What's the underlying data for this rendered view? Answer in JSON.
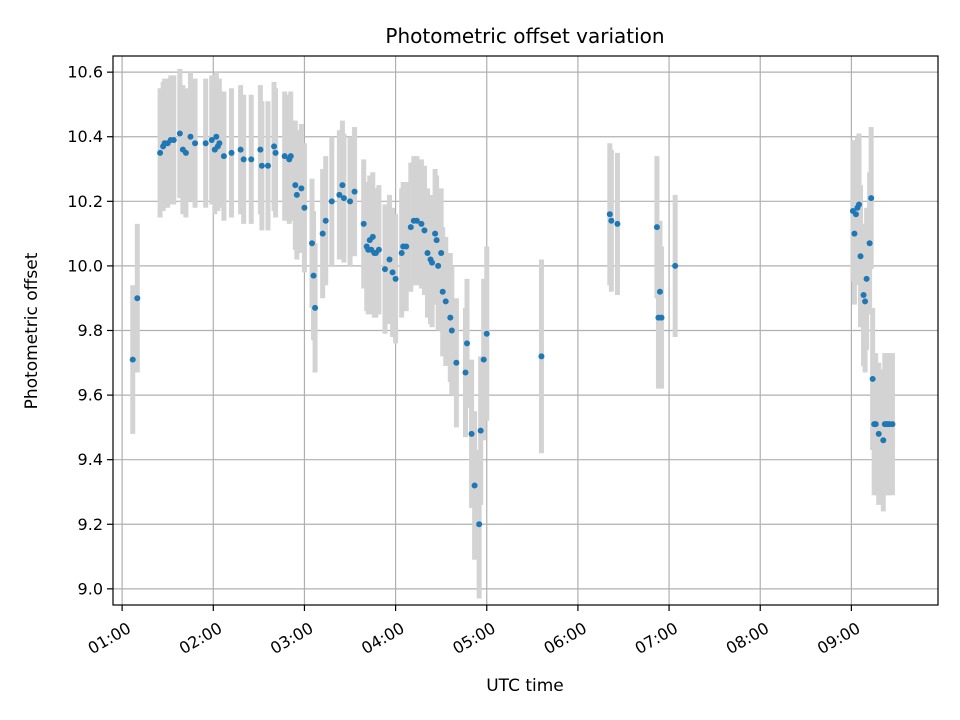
{
  "chart_data": {
    "type": "scatter",
    "title": "Photometric offset variation",
    "xlabel": "UTC time",
    "ylabel": "Photometric offset",
    "x_unit": "UTC hh:mm",
    "xlim": [
      "00:54",
      "09:57"
    ],
    "ylim": [
      8.95,
      10.65
    ],
    "x_ticks": [
      "01:00",
      "02:00",
      "03:00",
      "04:00",
      "05:00",
      "06:00",
      "07:00",
      "08:00",
      "09:00"
    ],
    "y_ticks": [
      "9.0",
      "9.2",
      "9.4",
      "9.6",
      "9.8",
      "10.0",
      "10.2",
      "10.4",
      "10.6"
    ],
    "grid": true,
    "point_color": "#1f77b4",
    "errorbar_color": "#d3d3d3",
    "series": [
      {
        "x": [
          "01:07",
          "01:10",
          "01:25",
          "01:27",
          "01:28",
          "01:30",
          "01:32",
          "01:34",
          "01:38",
          "01:40",
          "01:42",
          "01:45",
          "01:48",
          "01:55",
          "01:59",
          "02:01",
          "02:02",
          "02:03",
          "02:04",
          "02:07",
          "02:12",
          "02:18",
          "02:20",
          "02:25",
          "02:31",
          "02:32",
          "02:36",
          "02:40",
          "02:41",
          "02:47",
          "02:50",
          "02:51",
          "02:54",
          "02:55",
          "02:58",
          "03:00",
          "03:05",
          "03:06",
          "03:07",
          "03:12",
          "03:14",
          "03:18",
          "03:23",
          "03:25",
          "03:26",
          "03:30",
          "03:33",
          "03:39",
          "03:41",
          "03:42",
          "03:43",
          "03:44",
          "03:45",
          "03:46",
          "03:47",
          "03:49",
          "03:53",
          "03:56",
          "03:58",
          "04:00",
          "04:04",
          "04:05",
          "04:07",
          "04:10",
          "04:12",
          "04:14",
          "04:17",
          "04:19",
          "04:21",
          "04:23",
          "04:24",
          "04:26",
          "04:27",
          "04:28",
          "04:30",
          "04:31",
          "04:33",
          "04:36",
          "04:37",
          "04:40",
          "04:46",
          "04:47",
          "04:50",
          "04:52",
          "04:55",
          "04:56",
          "04:58",
          "05:00",
          "05:36",
          "06:21",
          "06:22",
          "06:26",
          "06:52",
          "06:53",
          "06:54",
          "06:55",
          "07:04",
          "09:01",
          "09:02",
          "09:03",
          "09:04",
          "09:05",
          "09:06",
          "09:08",
          "09:09",
          "09:10",
          "09:12",
          "09:13",
          "09:14",
          "09:15",
          "09:16",
          "09:18",
          "09:21",
          "09:22",
          "09:23",
          "09:24",
          "09:25",
          "09:27"
        ],
        "y": [
          9.71,
          9.9,
          10.35,
          10.37,
          10.38,
          10.38,
          10.39,
          10.39,
          10.41,
          10.36,
          10.35,
          10.4,
          10.38,
          10.38,
          10.39,
          10.36,
          10.4,
          10.37,
          10.38,
          10.34,
          10.35,
          10.36,
          10.33,
          10.33,
          10.36,
          10.31,
          10.31,
          10.37,
          10.35,
          10.34,
          10.33,
          10.34,
          10.25,
          10.22,
          10.24,
          10.18,
          10.07,
          9.97,
          9.87,
          10.1,
          10.14,
          10.2,
          10.22,
          10.25,
          10.21,
          10.2,
          10.23,
          10.13,
          10.06,
          10.05,
          10.08,
          10.05,
          10.09,
          10.04,
          10.04,
          10.05,
          9.99,
          10.02,
          9.98,
          9.96,
          10.04,
          10.06,
          10.06,
          10.12,
          10.14,
          10.14,
          10.13,
          10.11,
          10.04,
          10.02,
          10.01,
          10.1,
          10.08,
          10.0,
          10.04,
          9.92,
          9.89,
          9.84,
          9.8,
          9.7,
          9.67,
          9.76,
          9.48,
          9.32,
          9.2,
          9.49,
          9.71,
          9.79,
          9.72,
          10.16,
          10.14,
          10.13,
          10.12,
          9.84,
          9.92,
          9.84,
          10.0,
          10.17,
          10.1,
          10.16,
          10.18,
          10.19,
          10.03,
          9.91,
          9.89,
          9.96,
          10.07,
          10.21,
          9.65,
          9.51,
          9.51,
          9.48,
          9.46,
          9.51,
          9.51,
          9.51,
          9.51,
          9.51
        ],
        "yerr": [
          0.23,
          0.23,
          0.2,
          0.2,
          0.2,
          0.2,
          0.2,
          0.2,
          0.2,
          0.2,
          0.2,
          0.2,
          0.2,
          0.2,
          0.2,
          0.2,
          0.2,
          0.2,
          0.2,
          0.2,
          0.2,
          0.2,
          0.2,
          0.2,
          0.2,
          0.2,
          0.2,
          0.2,
          0.2,
          0.2,
          0.2,
          0.2,
          0.2,
          0.2,
          0.2,
          0.2,
          0.2,
          0.2,
          0.2,
          0.2,
          0.2,
          0.2,
          0.2,
          0.2,
          0.2,
          0.2,
          0.2,
          0.2,
          0.2,
          0.2,
          0.2,
          0.2,
          0.2,
          0.2,
          0.2,
          0.2,
          0.2,
          0.2,
          0.2,
          0.2,
          0.2,
          0.2,
          0.2,
          0.2,
          0.2,
          0.2,
          0.2,
          0.2,
          0.2,
          0.2,
          0.2,
          0.2,
          0.2,
          0.2,
          0.2,
          0.2,
          0.2,
          0.2,
          0.2,
          0.2,
          0.2,
          0.2,
          0.23,
          0.23,
          0.23,
          0.23,
          0.25,
          0.27,
          0.3,
          0.22,
          0.22,
          0.22,
          0.22,
          0.22,
          0.22,
          0.22,
          0.22,
          0.22,
          0.22,
          0.22,
          0.22,
          0.22,
          0.22,
          0.22,
          0.22,
          0.22,
          0.22,
          0.22,
          0.22,
          0.22,
          0.22,
          0.22,
          0.22,
          0.22,
          0.22,
          0.22,
          0.22,
          0.22
        ]
      }
    ]
  }
}
